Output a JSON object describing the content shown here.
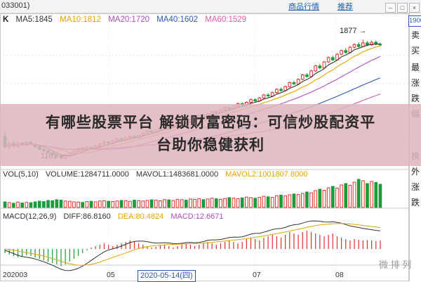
{
  "toolbar": {
    "code": "033001)",
    "links": [
      "商品行情",
      "推荐"
    ],
    "price_box": "1900"
  },
  "legend_main": {
    "k": "K",
    "ma5": "MA5:1845",
    "ma10": "MA10:1812",
    "ma20": "MA20:1720",
    "ma40": "MA40:1602",
    "ma60": "MA60:1529"
  },
  "legend_vol": {
    "vol": "VOL(5,10)",
    "volume": "VOLUME:1284711.0000",
    "mavol1": "MAVOL1:1483681.0000",
    "mavol2": "MAVOL2:1001807.8000"
  },
  "legend_macd": {
    "macd": "MACD(12,26,9)",
    "diff": "DIFF:86.8160",
    "dea": "DEA:80.4824",
    "macd_val": "MACD:12.6671"
  },
  "annotations": {
    "high": "1877",
    "low": "1161"
  },
  "side_text": [
    "卖",
    "买",
    "最",
    "涨",
    "跌",
    "幅",
    "换",
    "外",
    "涨",
    "跌"
  ],
  "overlay": {
    "line1": "有哪些股票平台 解锁财富密码：可信炒股配资平",
    "line2": "台助你稳健获利"
  },
  "x_axis": {
    "labels": [
      "202003",
      "05",
      "07",
      "08"
    ],
    "selected_date": "2020-05-14(四)"
  },
  "watermark": "微 排 列",
  "colors": {
    "up": "#e0302e",
    "down": "#1a9c3b",
    "ma5": "#333333",
    "ma10": "#e8a400",
    "ma20": "#b04cc1",
    "ma40": "#2b57b5",
    "ma60": "#e05ca8"
  },
  "chart_data": {
    "type": "candlestick",
    "price_high_label": 1877,
    "price_low_label": 1161,
    "candles": [
      [
        1300,
        1235,
        1325,
        1220
      ],
      [
        1235,
        1255,
        1265,
        1218
      ],
      [
        1255,
        1240,
        1270,
        1232
      ],
      [
        1240,
        1258,
        1264,
        1228
      ],
      [
        1258,
        1246,
        1262,
        1238
      ],
      [
        1246,
        1262,
        1268,
        1240
      ],
      [
        1262,
        1250,
        1274,
        1245
      ],
      [
        1250,
        1236,
        1258,
        1226
      ],
      [
        1236,
        1220,
        1242,
        1212
      ],
      [
        1220,
        1212,
        1228,
        1204
      ],
      [
        1212,
        1200,
        1218,
        1192
      ],
      [
        1200,
        1188,
        1206,
        1180
      ],
      [
        1188,
        1178,
        1196,
        1170
      ],
      [
        1178,
        1168,
        1185,
        1161
      ],
      [
        1168,
        1182,
        1190,
        1163
      ],
      [
        1182,
        1196,
        1200,
        1176
      ],
      [
        1196,
        1210,
        1214,
        1190
      ],
      [
        1210,
        1226,
        1230,
        1204
      ],
      [
        1226,
        1218,
        1234,
        1212
      ],
      [
        1218,
        1232,
        1238,
        1214
      ],
      [
        1232,
        1224,
        1240,
        1218
      ],
      [
        1224,
        1240,
        1246,
        1220
      ],
      [
        1240,
        1252,
        1258,
        1234
      ],
      [
        1252,
        1264,
        1270,
        1246
      ],
      [
        1264,
        1258,
        1272,
        1252
      ],
      [
        1258,
        1270,
        1276,
        1252
      ],
      [
        1270,
        1284,
        1290,
        1264
      ],
      [
        1284,
        1276,
        1292,
        1270
      ],
      [
        1276,
        1290,
        1296,
        1272
      ],
      [
        1290,
        1298,
        1304,
        1284
      ],
      [
        1298,
        1292,
        1306,
        1286
      ],
      [
        1292,
        1304,
        1310,
        1288
      ],
      [
        1304,
        1318,
        1322,
        1298
      ],
      [
        1318,
        1330,
        1336,
        1312
      ],
      [
        1330,
        1322,
        1338,
        1316
      ],
      [
        1322,
        1336,
        1342,
        1318
      ],
      [
        1336,
        1348,
        1354,
        1330
      ],
      [
        1348,
        1360,
        1366,
        1342
      ],
      [
        1360,
        1352,
        1368,
        1346
      ],
      [
        1352,
        1366,
        1372,
        1348
      ],
      [
        1366,
        1378,
        1384,
        1360
      ],
      [
        1378,
        1390,
        1396,
        1372
      ],
      [
        1390,
        1384,
        1398,
        1378
      ],
      [
        1384,
        1398,
        1404,
        1380
      ],
      [
        1398,
        1410,
        1416,
        1392
      ],
      [
        1410,
        1424,
        1430,
        1404
      ],
      [
        1424,
        1418,
        1432,
        1412
      ],
      [
        1418,
        1432,
        1438,
        1414
      ],
      [
        1432,
        1446,
        1452,
        1426
      ],
      [
        1446,
        1440,
        1454,
        1434
      ],
      [
        1440,
        1456,
        1462,
        1436
      ],
      [
        1456,
        1470,
        1476,
        1450
      ],
      [
        1470,
        1462,
        1478,
        1456
      ],
      [
        1462,
        1478,
        1484,
        1458
      ],
      [
        1478,
        1494,
        1500,
        1472
      ],
      [
        1494,
        1486,
        1502,
        1480
      ],
      [
        1486,
        1502,
        1508,
        1482
      ],
      [
        1502,
        1518,
        1524,
        1496
      ],
      [
        1518,
        1510,
        1526,
        1504
      ],
      [
        1510,
        1528,
        1534,
        1506
      ],
      [
        1528,
        1546,
        1552,
        1522
      ],
      [
        1546,
        1540,
        1556,
        1534
      ],
      [
        1540,
        1560,
        1566,
        1536
      ],
      [
        1560,
        1580,
        1586,
        1554
      ],
      [
        1580,
        1572,
        1590,
        1566
      ],
      [
        1572,
        1596,
        1602,
        1568
      ],
      [
        1596,
        1620,
        1626,
        1590
      ],
      [
        1620,
        1612,
        1632,
        1606
      ],
      [
        1612,
        1640,
        1646,
        1608
      ],
      [
        1640,
        1666,
        1672,
        1634
      ],
      [
        1666,
        1656,
        1678,
        1650
      ],
      [
        1656,
        1690,
        1696,
        1652
      ],
      [
        1690,
        1720,
        1726,
        1684
      ],
      [
        1720,
        1708,
        1732,
        1700
      ],
      [
        1708,
        1744,
        1750,
        1704
      ],
      [
        1744,
        1770,
        1776,
        1738
      ],
      [
        1770,
        1756,
        1782,
        1750
      ],
      [
        1756,
        1790,
        1796,
        1752
      ],
      [
        1790,
        1812,
        1818,
        1784
      ],
      [
        1812,
        1800,
        1826,
        1794
      ],
      [
        1800,
        1832,
        1840,
        1796
      ],
      [
        1832,
        1848,
        1856,
        1824
      ],
      [
        1848,
        1836,
        1862,
        1830
      ],
      [
        1836,
        1858,
        1877,
        1832
      ],
      [
        1858,
        1846,
        1868,
        1838
      ],
      [
        1846,
        1862,
        1870,
        1840
      ],
      [
        1862,
        1850,
        1872,
        1844
      ],
      [
        1850,
        1845,
        1860,
        1838
      ]
    ],
    "volume": [
      40,
      35,
      30,
      38,
      32,
      36,
      34,
      40,
      45,
      42,
      50,
      48,
      55,
      52,
      46,
      44,
      40,
      38,
      36,
      42,
      44,
      40,
      46,
      48,
      44,
      42,
      46,
      50,
      48,
      44,
      52,
      48,
      46,
      50,
      54,
      52,
      48,
      56,
      54,
      50,
      58,
      56,
      52,
      60,
      58,
      62,
      56,
      60,
      66,
      62,
      58,
      64,
      70,
      66,
      62,
      68,
      74,
      70,
      66,
      72,
      80,
      76,
      72,
      84,
      88,
      82,
      90,
      96,
      92,
      100,
      110,
      104,
      120,
      130,
      122,
      140,
      150,
      138,
      160,
      170,
      158,
      180,
      200,
      190,
      170,
      185,
      178,
      165
    ],
    "macd_hist": [
      -6,
      -8,
      -10,
      -12,
      -11,
      -9,
      -10,
      -12,
      -14,
      -16,
      -18,
      -20,
      -22,
      -24,
      -22,
      -18,
      -14,
      -10,
      -6,
      -2,
      2,
      4,
      6,
      8,
      6,
      4,
      6,
      8,
      10,
      12,
      10,
      8,
      6,
      4,
      2,
      3,
      5,
      6,
      4,
      2,
      4,
      6,
      8,
      6,
      4,
      6,
      8,
      10,
      8,
      6,
      8,
      10,
      12,
      10,
      8,
      10,
      14,
      16,
      14,
      12,
      16,
      18,
      20,
      18,
      16,
      20,
      24,
      22,
      20,
      24,
      26,
      24,
      22,
      20,
      18,
      20,
      22,
      18,
      16,
      14,
      12,
      14,
      13,
      12,
      12.6671,
      12,
      11,
      12
    ]
  }
}
